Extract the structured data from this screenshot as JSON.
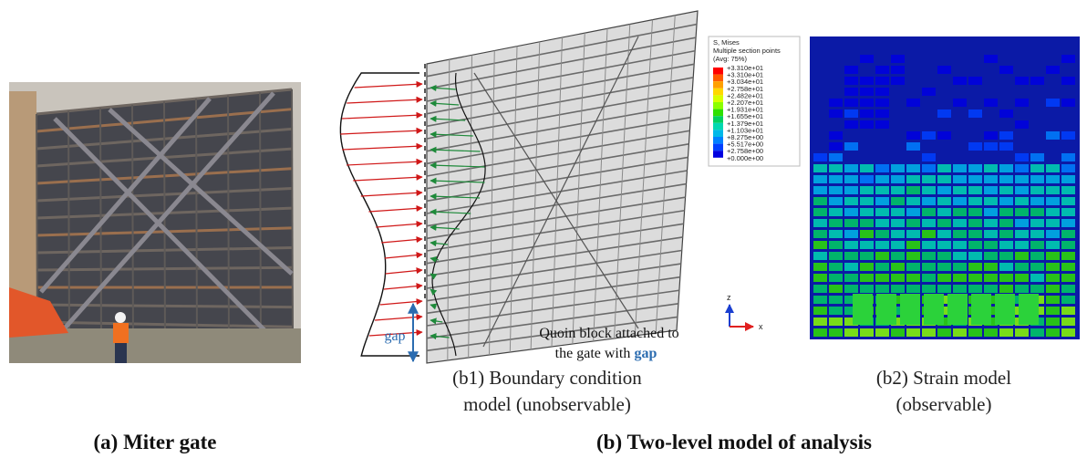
{
  "figure": {
    "panel_a": {
      "caption": "(a) Miter gate"
    },
    "panel_b1": {
      "caption_lines": [
        "(b1) Boundary condition",
        "model (unobservable)"
      ],
      "gap_label": "gap",
      "quoin_note_lines": [
        "Quoin block attached to",
        "the gate with"
      ],
      "quoin_note_emphasis": "gap"
    },
    "panel_b2": {
      "caption_lines": [
        "(b2) Strain model",
        "(observable)"
      ],
      "legend_title_lines": [
        "S, Mises",
        "Multiple section points",
        "(Avg: 75%)"
      ],
      "legend_labels": [
        "+3.310e+01",
        "+3.310e+01",
        "+3.034e+01",
        "+2.758e+01",
        "+2.482e+01",
        "+2.207e+01",
        "+1.931e+01",
        "+1.655e+01",
        "+1.379e+01",
        "+1.103e+01",
        "+8.275e+00",
        "+5.517e+00",
        "+2.758e+00",
        "+0.000e+00"
      ],
      "axis_labels": [
        "z",
        "x"
      ]
    },
    "caption_b": "(b) Two-level model of analysis"
  }
}
